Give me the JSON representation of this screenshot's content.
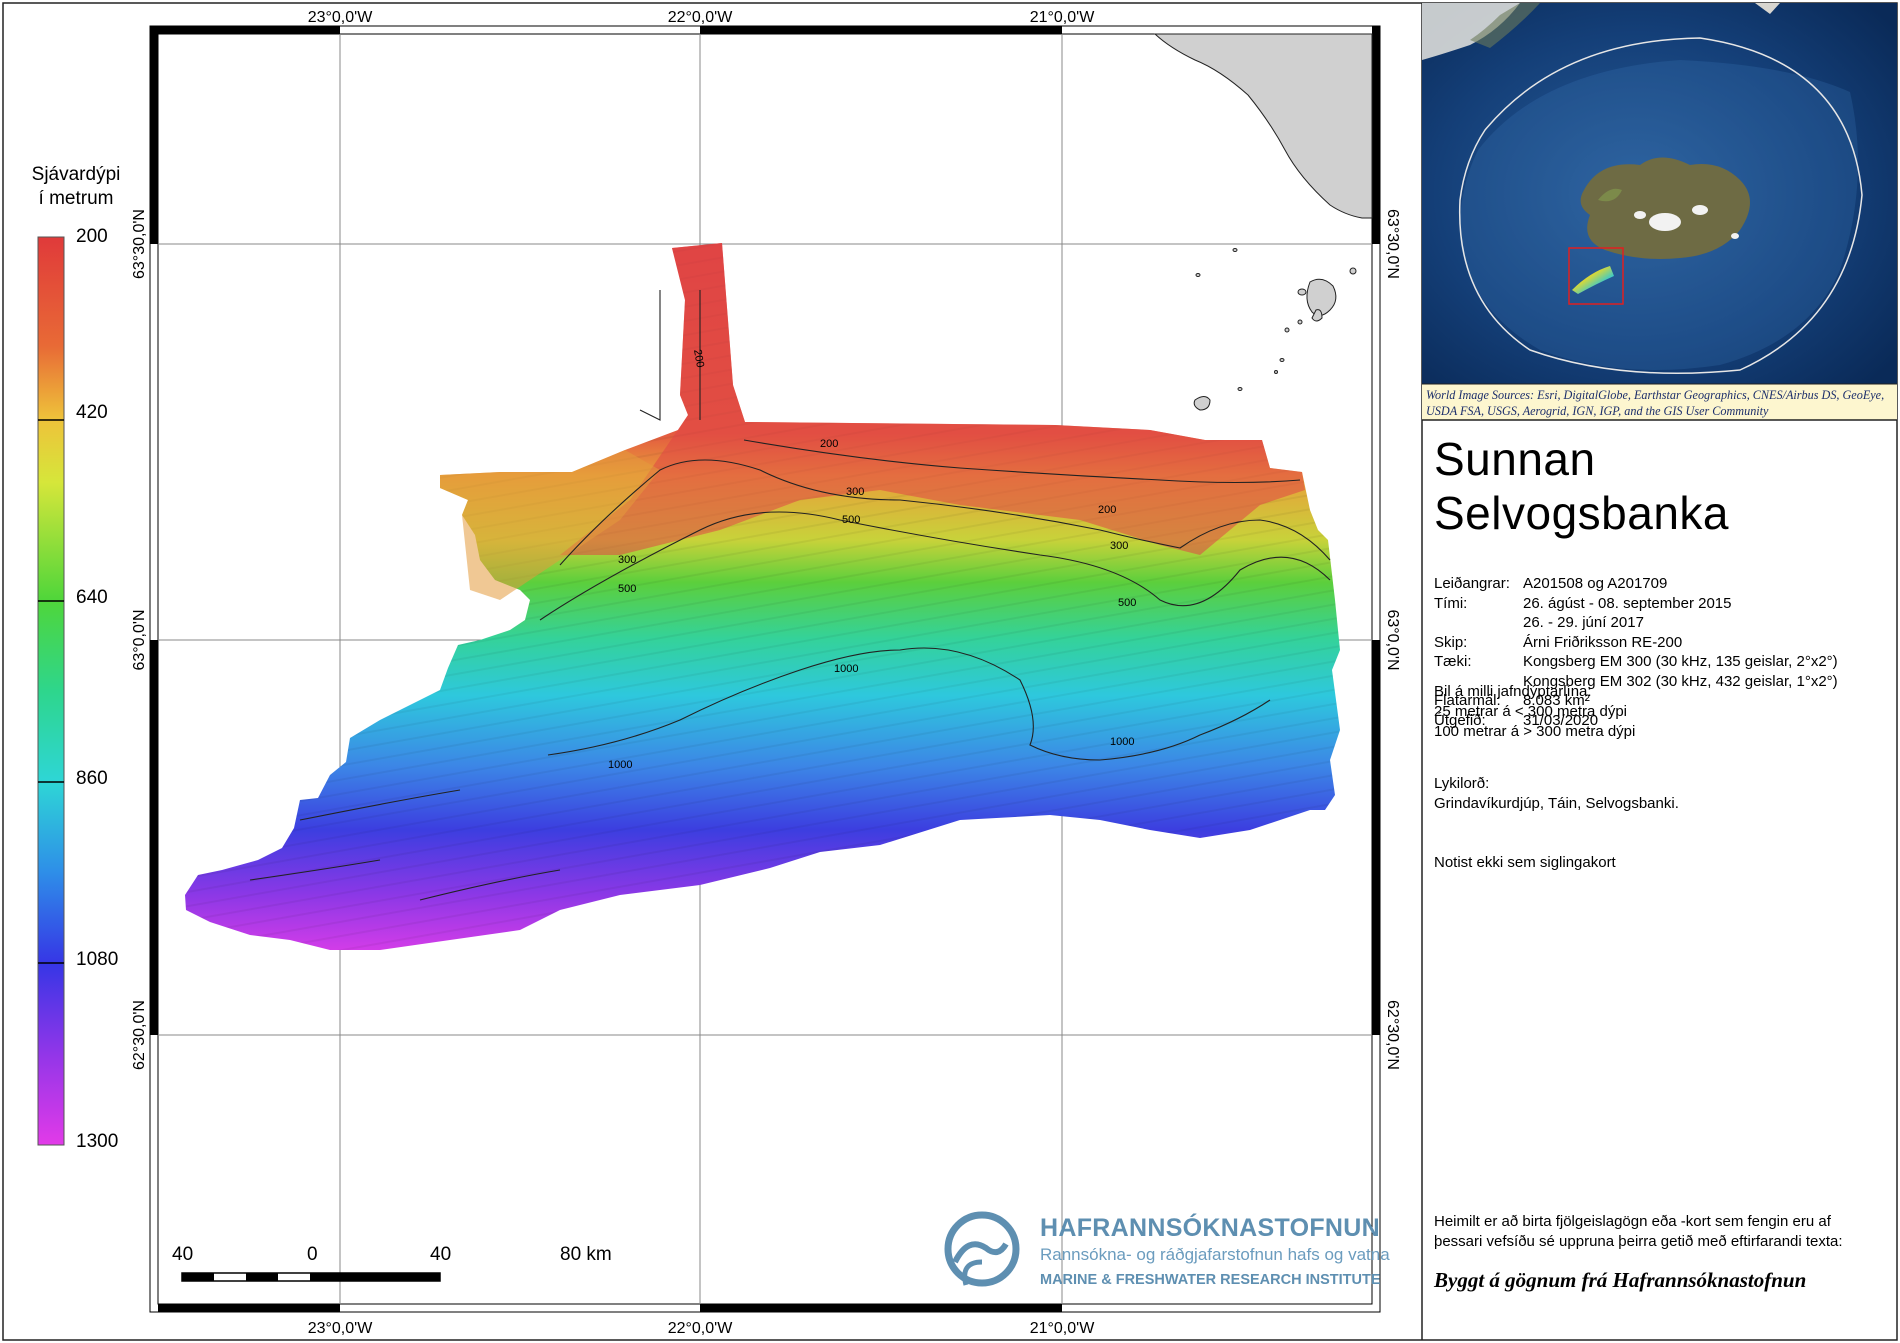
{
  "legend": {
    "title_line1": "Sjávardýpi",
    "title_line2": "í metrum",
    "ticks": [
      "200",
      "420",
      "640",
      "860",
      "1080",
      "1300"
    ]
  },
  "graticule": {
    "lon_labels": [
      "23°0,0'W",
      "22°0,0'W",
      "21°0,0'W"
    ],
    "lat_labels": [
      "63°30,0'N",
      "63°0,0'N",
      "62°30,0'N"
    ]
  },
  "contours": [
    "200",
    "200",
    "200",
    "300",
    "300",
    "300",
    "500",
    "500",
    "500",
    "1000",
    "1000",
    "1000"
  ],
  "scale_bar": {
    "labels": [
      "40",
      "0",
      "40",
      "80 km"
    ]
  },
  "logo": {
    "name": "HAFRANNSÓKNASTOFNUN",
    "subtitle_is": "Rannsókna- og ráðgjafarstofnun hafs og vatna",
    "subtitle_en": "MARINE & FRESHWATER RESEARCH INSTITUTE"
  },
  "inset": {
    "source_credit": "World Image Sources: Esri, DigitalGlobe, Earthstar Geographics, CNES/Airbus DS, GeoEye, USDA FSA, USGS, Aerogrid, IGN, IGP, and the GIS User Community"
  },
  "info": {
    "title": "Sunnan Selvogsbanka",
    "rows": [
      {
        "key": "Leiðangrar:",
        "value": "A201508 og A201709"
      },
      {
        "key": "Tími:",
        "value": "26. ágúst - 08. september 2015"
      },
      {
        "key": "",
        "value": "26. - 29. júní 2017"
      },
      {
        "key": "Skip:",
        "value": "Árni Friðriksson RE-200"
      },
      {
        "key": "Tæki:",
        "value": "Kongsberg EM 300 (30 kHz, 135 geislar, 2°x2°)"
      },
      {
        "key": "",
        "value": "Kongsberg EM 302 (30 kHz, 432 geislar, 1°x2°)"
      },
      {
        "key": "Flatarmál:",
        "value": "8.083 km²"
      },
      {
        "key": "Útgefið:",
        "value": "31/03/2020"
      }
    ],
    "contour_title": "Bil á milli jafndýptarlína:",
    "contour_line1": "25 metrar á < 300 metra dýpi",
    "contour_line2": "100 metrar á > 300 metra dýpi",
    "keywords_title": "Lykilorð:",
    "keywords": "Grindavíkurdjúp, Táin, Selvogsbanki.",
    "disclaimer": "Notist ekki sem siglingakort",
    "license_line1": "Heimilt er að birta fjölgeislagögn eða -kort sem fengin eru af",
    "license_line2": "þessari vefsíðu sé uppruna þeirra getið með eftirfarandi texta:",
    "citation": "Byggt á gögnum frá Hafrannsóknastofnun"
  },
  "colors": {
    "deep": "#cc33ee",
    "shallow": "#dd3333",
    "land": "#d0d0d0",
    "logo": "#5e8fb1"
  }
}
